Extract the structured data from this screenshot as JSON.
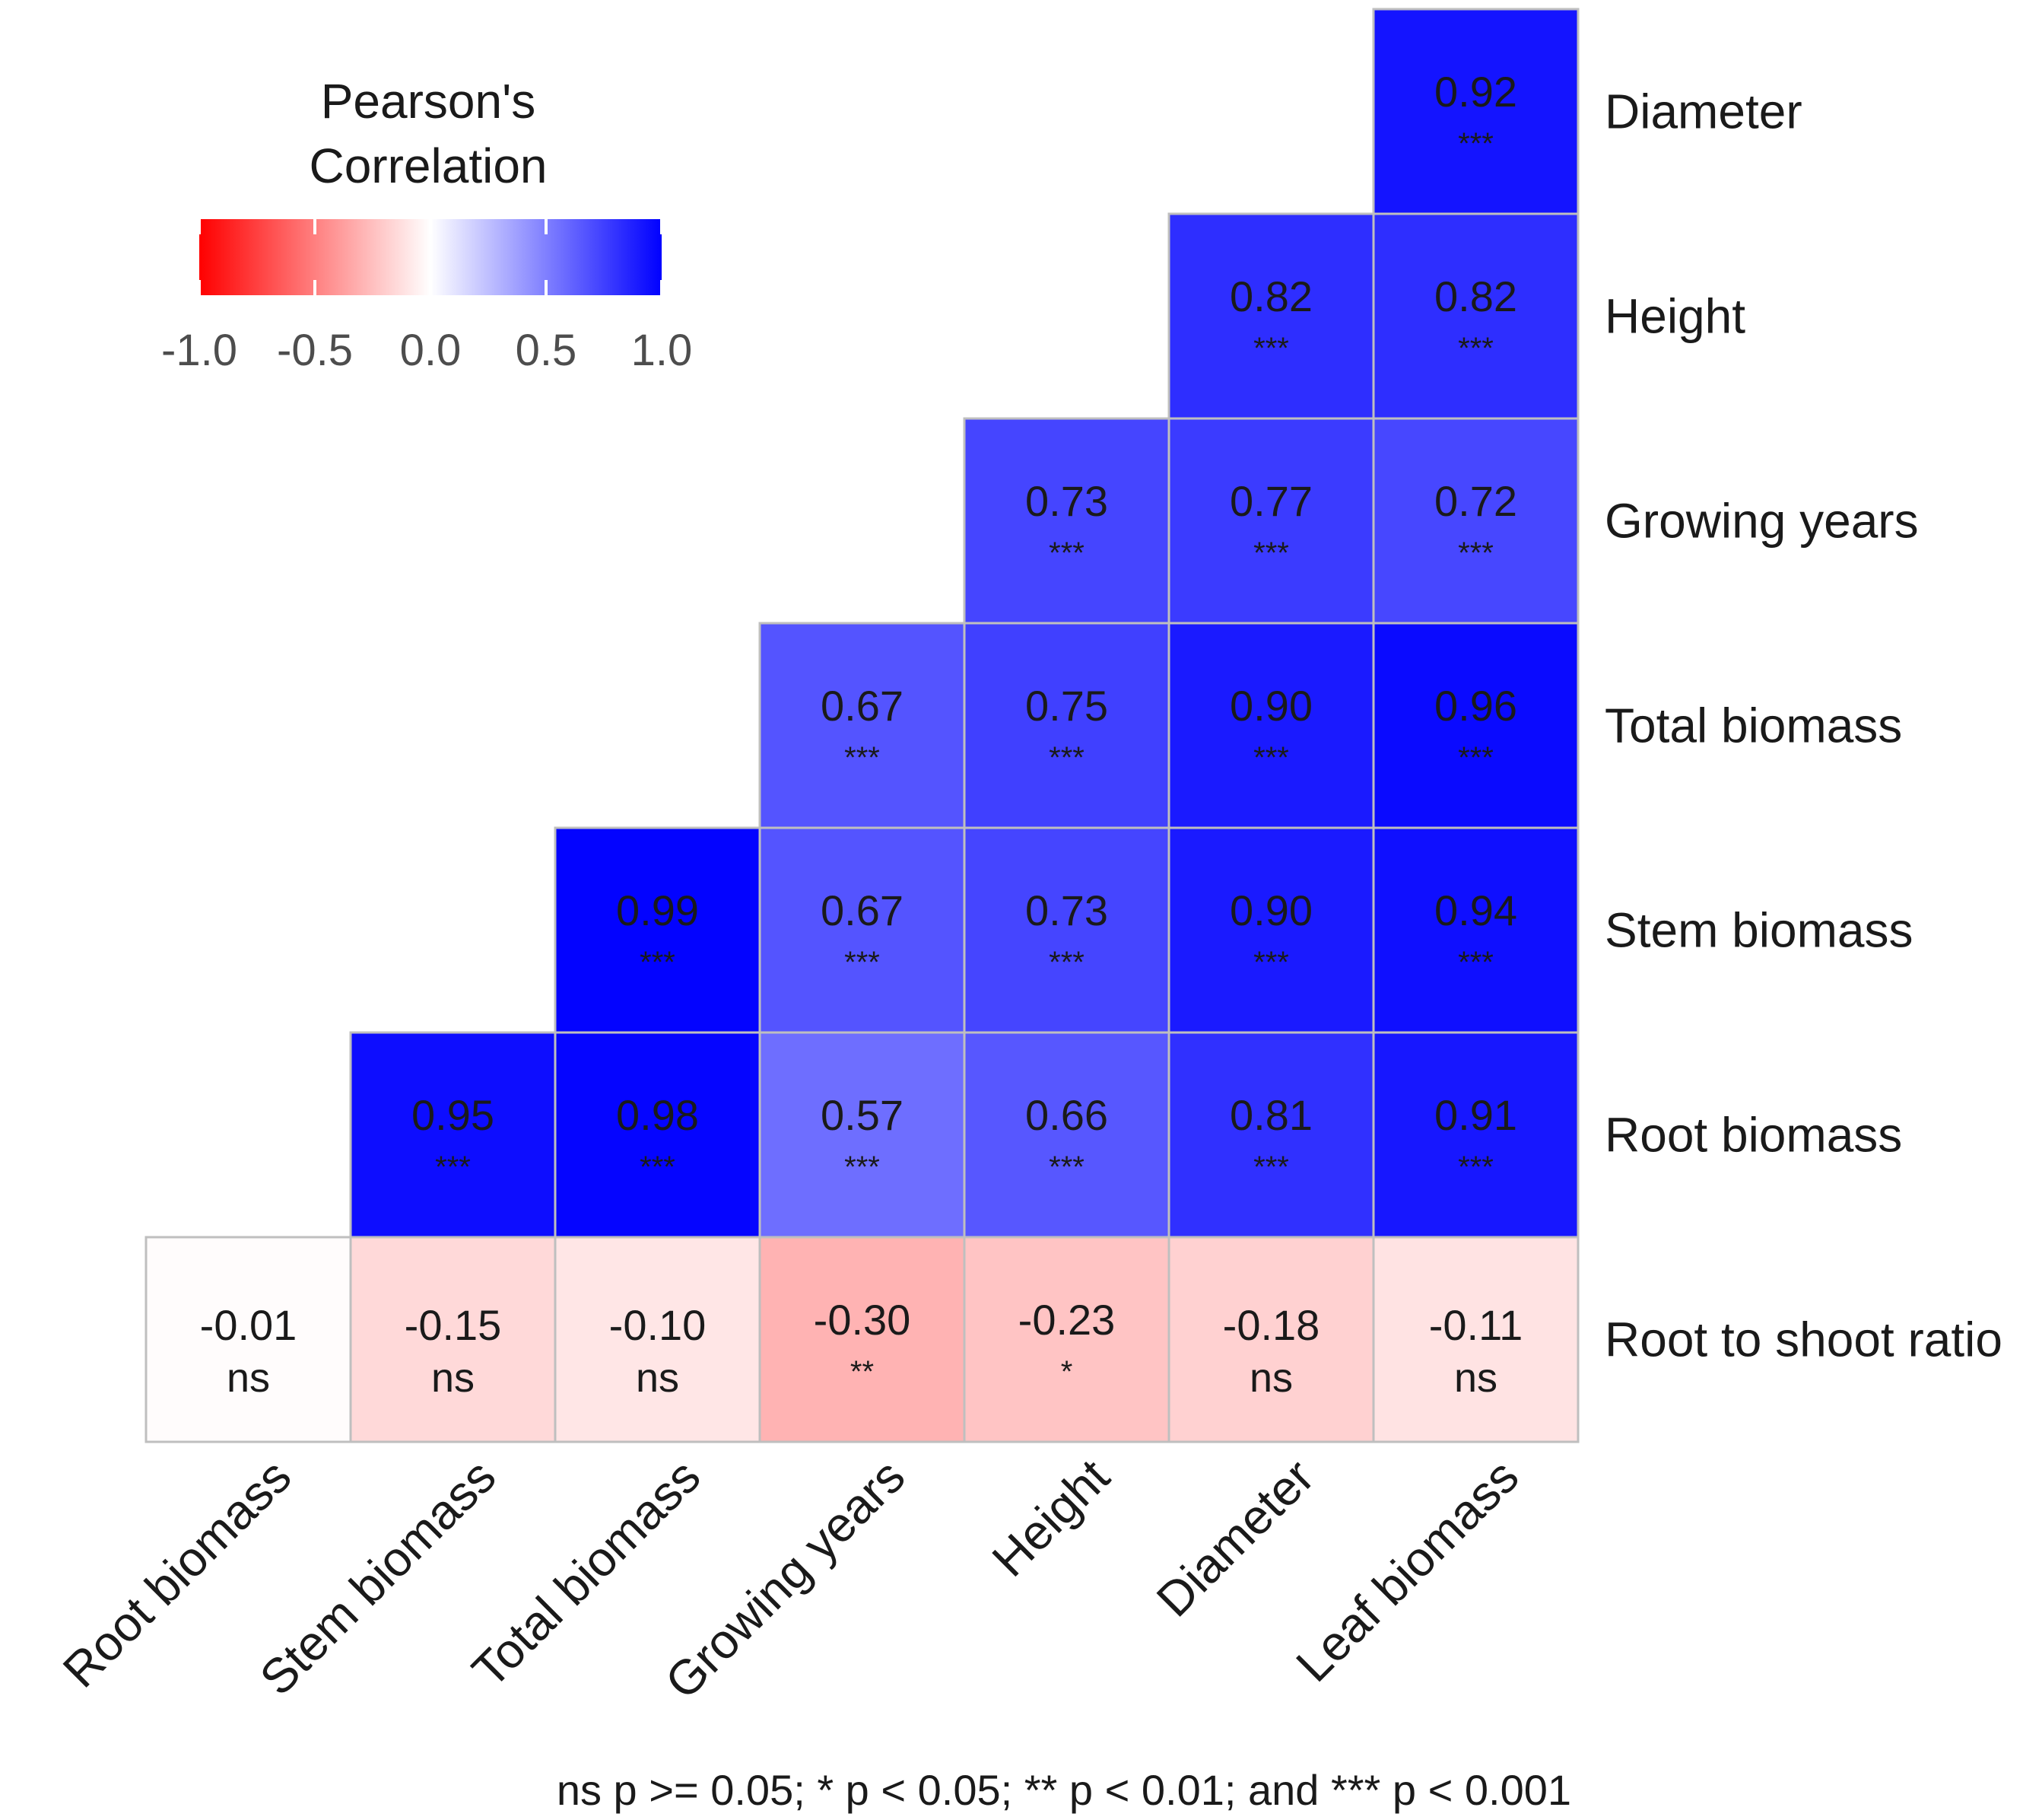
{
  "chart_data": {
    "type": "heatmap",
    "title": "",
    "legend": {
      "title_line1": "Pearson's",
      "title_line2": "Correlation",
      "ticks": [
        "-1.0",
        "-0.5",
        "0.0",
        "0.5",
        "1.0"
      ],
      "range": [
        -1,
        1
      ],
      "low_color": "#ff0000",
      "mid_color": "#ffffff",
      "high_color": "#0000ff",
      "placement": "top-left"
    },
    "row_labels": [
      "Diameter",
      "Height",
      "Growing years",
      "Total biomass",
      "Stem biomass",
      "Root biomass",
      "Root to shoot ratio"
    ],
    "col_labels": [
      "Root biomass",
      "Stem biomass",
      "Total biomass",
      "Growing years",
      "Height",
      "Diameter",
      "Leaf biomass"
    ],
    "cells": [
      {
        "row": 0,
        "col": 6,
        "label": "0.92",
        "value": 0.92,
        "sig": "***"
      },
      {
        "row": 1,
        "col": 5,
        "label": "0.82",
        "value": 0.82,
        "sig": "***"
      },
      {
        "row": 1,
        "col": 6,
        "label": "0.82",
        "value": 0.82,
        "sig": "***"
      },
      {
        "row": 2,
        "col": 4,
        "label": "0.73",
        "value": 0.73,
        "sig": "***"
      },
      {
        "row": 2,
        "col": 5,
        "label": "0.77",
        "value": 0.77,
        "sig": "***"
      },
      {
        "row": 2,
        "col": 6,
        "label": "0.72",
        "value": 0.72,
        "sig": "***"
      },
      {
        "row": 3,
        "col": 3,
        "label": "0.67",
        "value": 0.67,
        "sig": "***"
      },
      {
        "row": 3,
        "col": 4,
        "label": "0.75",
        "value": 0.75,
        "sig": "***"
      },
      {
        "row": 3,
        "col": 5,
        "label": "0.90",
        "value": 0.9,
        "sig": "***"
      },
      {
        "row": 3,
        "col": 6,
        "label": "0.96",
        "value": 0.96,
        "sig": "***"
      },
      {
        "row": 4,
        "col": 2,
        "label": "0.99",
        "value": 0.99,
        "sig": "***"
      },
      {
        "row": 4,
        "col": 3,
        "label": "0.67",
        "value": 0.67,
        "sig": "***"
      },
      {
        "row": 4,
        "col": 4,
        "label": "0.73",
        "value": 0.73,
        "sig": "***"
      },
      {
        "row": 4,
        "col": 5,
        "label": "0.90",
        "value": 0.9,
        "sig": "***"
      },
      {
        "row": 4,
        "col": 6,
        "label": "0.94",
        "value": 0.94,
        "sig": "***"
      },
      {
        "row": 5,
        "col": 1,
        "label": "0.95",
        "value": 0.95,
        "sig": "***"
      },
      {
        "row": 5,
        "col": 2,
        "label": "0.98",
        "value": 0.98,
        "sig": "***"
      },
      {
        "row": 5,
        "col": 3,
        "label": "0.57",
        "value": 0.57,
        "sig": "***"
      },
      {
        "row": 5,
        "col": 4,
        "label": "0.66",
        "value": 0.66,
        "sig": "***"
      },
      {
        "row": 5,
        "col": 5,
        "label": "0.81",
        "value": 0.81,
        "sig": "***"
      },
      {
        "row": 5,
        "col": 6,
        "label": "0.91",
        "value": 0.91,
        "sig": "***"
      },
      {
        "row": 6,
        "col": 0,
        "label": "-0.01",
        "value": -0.01,
        "sig": "ns"
      },
      {
        "row": 6,
        "col": 1,
        "label": "-0.15",
        "value": -0.15,
        "sig": "ns"
      },
      {
        "row": 6,
        "col": 2,
        "label": "-0.10",
        "value": -0.1,
        "sig": "ns"
      },
      {
        "row": 6,
        "col": 3,
        "label": "-0.30",
        "value": -0.3,
        "sig": "**"
      },
      {
        "row": 6,
        "col": 4,
        "label": "-0.23",
        "value": -0.23,
        "sig": "*"
      },
      {
        "row": 6,
        "col": 5,
        "label": "-0.18",
        "value": -0.18,
        "sig": "ns"
      },
      {
        "row": 6,
        "col": 6,
        "label": "-0.11",
        "value": -0.11,
        "sig": "ns"
      }
    ],
    "caption": "ns p >= 0.05; * p < 0.05; ** p < 0.01; and *** p < 0.001"
  }
}
